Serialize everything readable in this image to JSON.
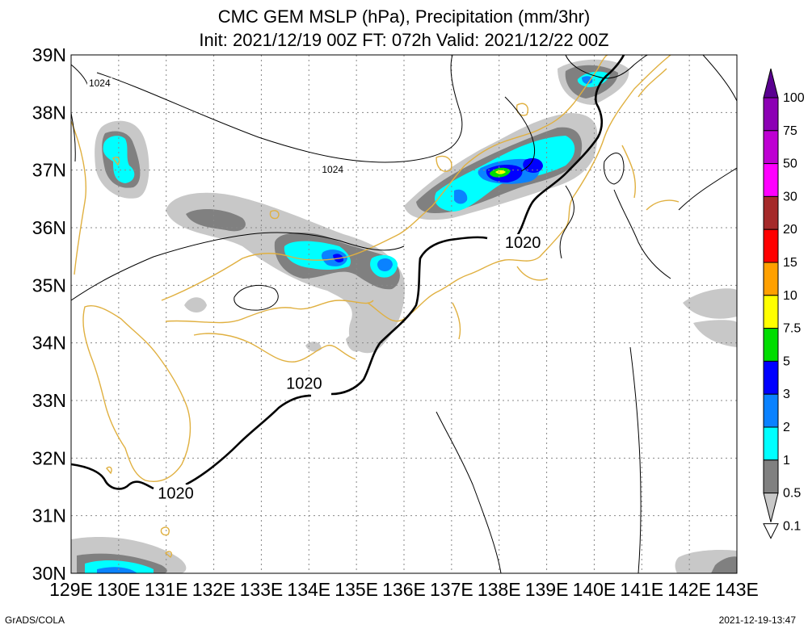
{
  "title": {
    "line1": "CMC GEM MSLP (hPa), Precipitation (mm/3hr)",
    "line2": "Init: 2021/12/19 00Z  FT: 072h  Valid: 2021/12/22 00Z"
  },
  "axes": {
    "lon_labels": [
      "129E",
      "130E",
      "131E",
      "132E",
      "133E",
      "134E",
      "135E",
      "136E",
      "137E",
      "138E",
      "139E",
      "140E",
      "141E",
      "142E",
      "143E"
    ],
    "lat_labels": [
      "39N",
      "38N",
      "37N",
      "36N",
      "35N",
      "34N",
      "33N",
      "32N",
      "31N",
      "30N"
    ],
    "lon_range": [
      129,
      143
    ],
    "lat_range": [
      30,
      39
    ],
    "grid": "dotted"
  },
  "isobar_labels": [
    {
      "text": "1024",
      "lon": 129.6,
      "lat": 38.45,
      "size": "small"
    },
    {
      "text": "1024",
      "lon": 134.5,
      "lat": 36.95,
      "size": "small"
    },
    {
      "text": "1020",
      "lon": 138.5,
      "lat": 35.65,
      "size": "large"
    },
    {
      "text": "1020",
      "lon": 133.9,
      "lat": 33.2,
      "size": "large"
    },
    {
      "text": "1020",
      "lon": 131.2,
      "lat": 31.3,
      "size": "large"
    }
  ],
  "colorbar": {
    "labels": [
      "100",
      "75",
      "50",
      "30",
      "20",
      "15",
      "10",
      "7.5",
      "5",
      "3",
      "2",
      "1",
      "0.5",
      "0.1"
    ],
    "colors": [
      "#5a0090",
      "#8c00b4",
      "#be00d2",
      "#ff00ff",
      "#a52a2a",
      "#ff0000",
      "#ffa000",
      "#ffff00",
      "#00dd00",
      "#0000ff",
      "#0a82ff",
      "#00ffff",
      "#808080",
      "#c8c8c8"
    ]
  },
  "footer": {
    "left": "GrADS/COLA",
    "right": "2021-12-19-13:47"
  }
}
